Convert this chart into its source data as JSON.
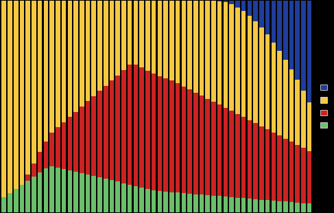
{
  "colors": [
    "#1f3d9c",
    "#f5c842",
    "#cc2222",
    "#6bbf6b"
  ],
  "n_bars": 52,
  "background": "#000000",
  "legend_colors": [
    "#1f3d9c",
    "#f5c842",
    "#cc2222",
    "#6bbf6b"
  ],
  "bar_width": 0.75
}
